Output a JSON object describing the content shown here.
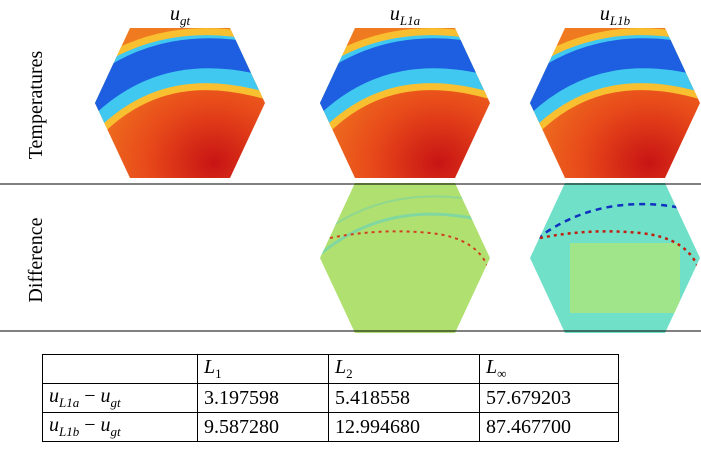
{
  "figure": {
    "columns": [
      {
        "base": "u",
        "sub": "gt"
      },
      {
        "base": "u",
        "sub": "L1a"
      },
      {
        "base": "u",
        "sub": "L1b"
      }
    ],
    "rows": [
      "Temperatures",
      "Difference"
    ]
  },
  "table": {
    "header": [
      {
        "base": "L",
        "sub": "1"
      },
      {
        "base": "L",
        "sub": "2"
      },
      {
        "base": "L",
        "sub": "∞"
      }
    ],
    "rows": [
      {
        "label": {
          "left": {
            "base": "u",
            "sub": "L1a"
          },
          "operator": "−",
          "right": {
            "base": "u",
            "sub": "gt"
          }
        },
        "values": [
          "3.197598",
          "5.418558",
          "57.679203"
        ]
      },
      {
        "label": {
          "left": {
            "base": "u",
            "sub": "L1b"
          },
          "operator": "−",
          "right": {
            "base": "u",
            "sub": "gt"
          }
        },
        "values": [
          "9.587280",
          "12.994680",
          "87.467700"
        ]
      }
    ]
  }
}
